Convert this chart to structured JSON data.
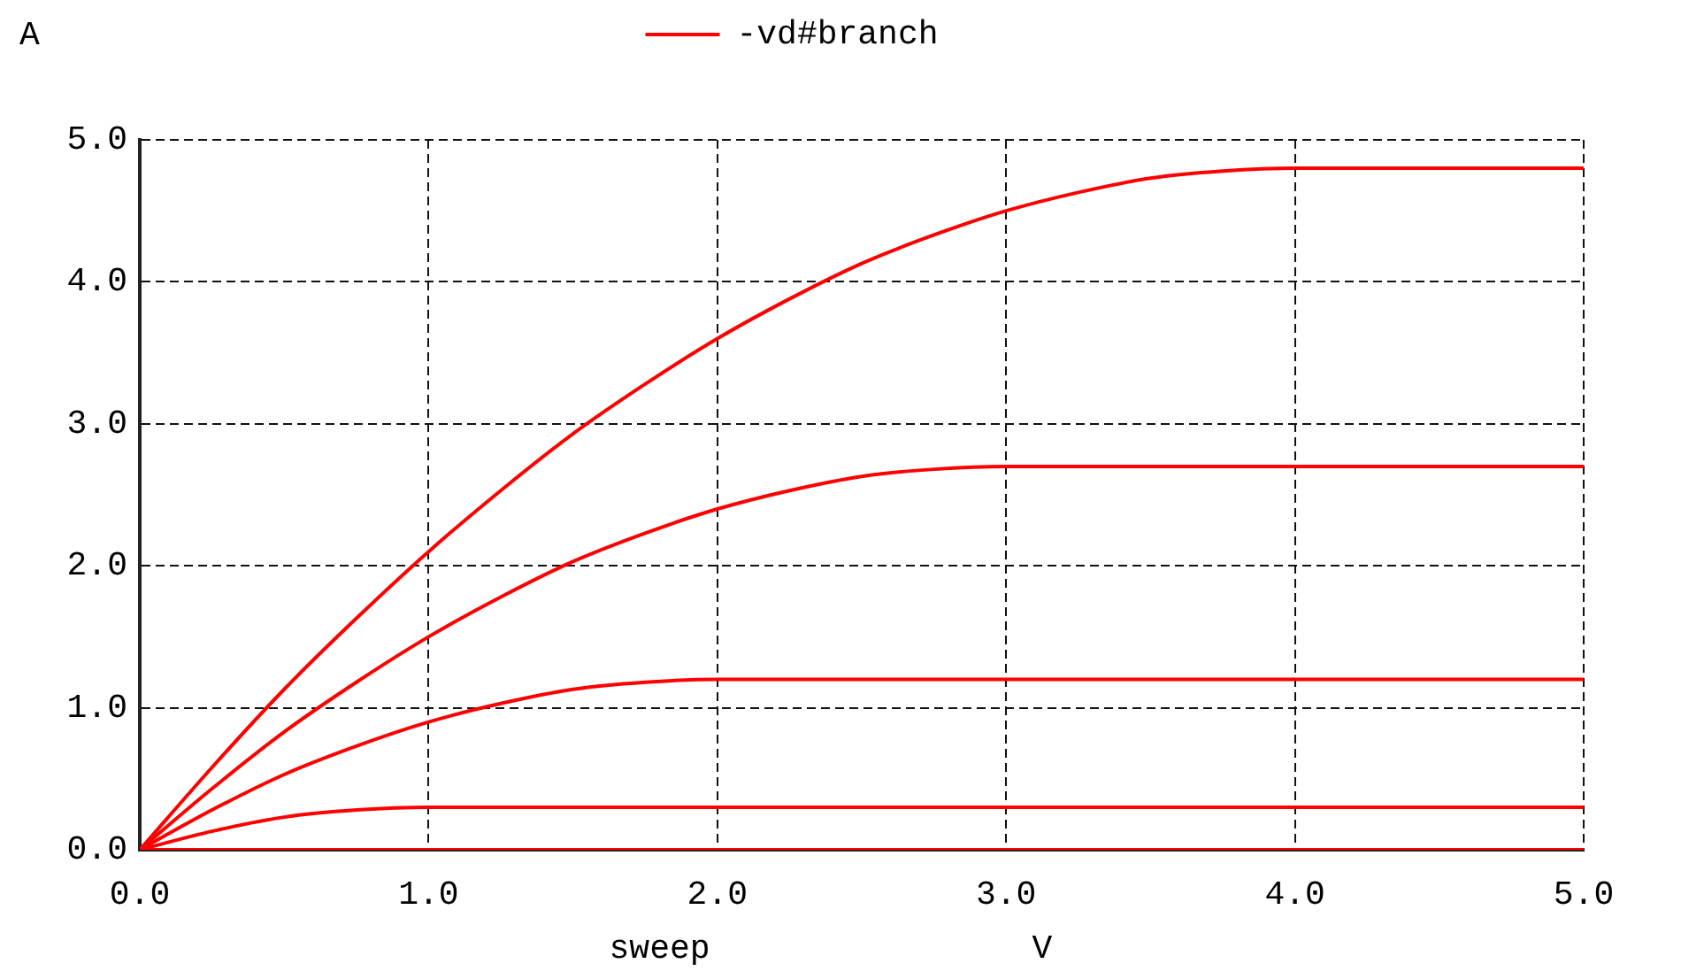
{
  "chart_data": {
    "type": "line",
    "ylabel": "A",
    "xlabel": "sweep",
    "annotations": [
      "V"
    ],
    "xlim": [
      0,
      5
    ],
    "xticks": [
      {
        "value": 0,
        "label": "0.0"
      },
      {
        "value": 1,
        "label": "1.0"
      },
      {
        "value": 2,
        "label": "2.0"
      },
      {
        "value": 3,
        "label": "3.0"
      },
      {
        "value": 4,
        "label": "4.0"
      },
      {
        "value": 5,
        "label": "5.0"
      }
    ],
    "ylim": [
      0,
      5
    ],
    "yticks": [
      {
        "value": 0,
        "label": "0.0"
      },
      {
        "value": 1,
        "label": "1.0"
      },
      {
        "value": 2,
        "label": "2.0"
      },
      {
        "value": 3,
        "label": "3.0"
      },
      {
        "value": 4,
        "label": "4.0"
      },
      {
        "value": 5,
        "label": "5.0"
      }
    ],
    "grid": true,
    "legend": "top",
    "marker": "none",
    "line_style": "solid",
    "series": [
      {
        "name": "-vd#branch",
        "color": "#ff0000",
        "x": [
          0,
          5
        ],
        "values": [
          0,
          0
        ]
      },
      {
        "color": "#ff0000",
        "x": [
          0,
          0.25,
          0.5,
          0.75,
          1,
          5
        ],
        "values": [
          0,
          0.13,
          0.23,
          0.28,
          0.3,
          0.3
        ]
      },
      {
        "color": "#ff0000",
        "x": [
          0,
          0.25,
          0.5,
          0.75,
          1,
          1.25,
          1.5,
          1.75,
          2,
          5
        ],
        "values": [
          0,
          0.28,
          0.53,
          0.73,
          0.9,
          1.03,
          1.13,
          1.18,
          1.2,
          1.2
        ]
      },
      {
        "color": "#ff0000",
        "x": [
          0,
          0.25,
          0.5,
          0.75,
          1,
          1.25,
          1.5,
          1.75,
          2,
          2.25,
          2.5,
          2.75,
          3,
          5
        ],
        "values": [
          0,
          0.43,
          0.83,
          1.18,
          1.5,
          1.78,
          2.03,
          2.23,
          2.4,
          2.53,
          2.63,
          2.68,
          2.7,
          2.7
        ]
      },
      {
        "color": "#ff0000",
        "x": [
          0,
          0.25,
          0.5,
          0.75,
          1,
          1.25,
          1.5,
          1.75,
          2,
          2.25,
          2.5,
          2.75,
          3,
          3.25,
          3.5,
          3.75,
          4,
          5
        ],
        "values": [
          0,
          0.58,
          1.13,
          1.63,
          2.1,
          2.53,
          2.93,
          3.28,
          3.6,
          3.88,
          4.13,
          4.33,
          4.5,
          4.63,
          4.73,
          4.78,
          4.8,
          4.8
        ]
      }
    ]
  }
}
